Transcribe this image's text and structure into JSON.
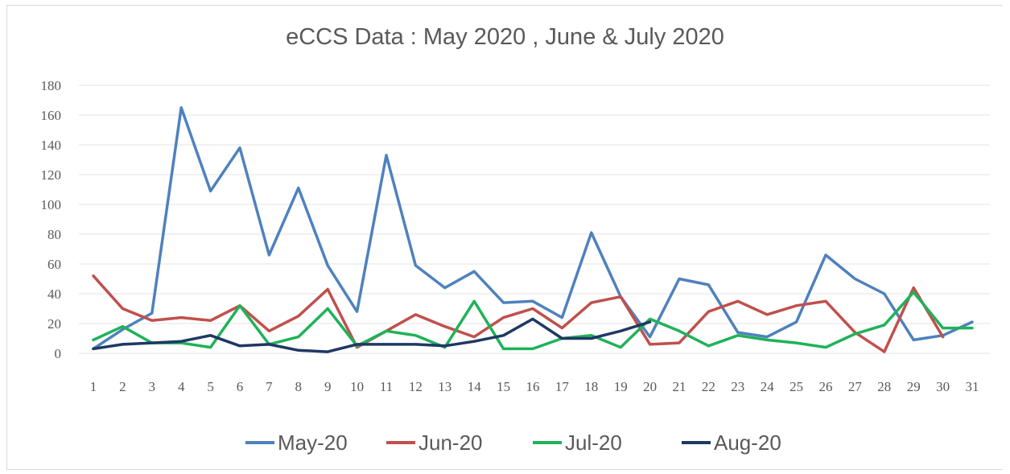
{
  "chart_data": {
    "type": "line",
    "title": "eCCS Data : May 2020 ,  June & July  2020",
    "xlabel": "",
    "ylabel": "",
    "x": [
      1,
      2,
      3,
      4,
      5,
      6,
      7,
      8,
      9,
      10,
      11,
      12,
      13,
      14,
      15,
      16,
      17,
      18,
      19,
      20,
      21,
      22,
      23,
      24,
      25,
      26,
      27,
      28,
      29,
      30,
      31
    ],
    "ylim": [
      0,
      180
    ],
    "yticks": [
      0,
      20,
      40,
      60,
      80,
      100,
      120,
      140,
      160,
      180
    ],
    "grid": true,
    "legend_position": "bottom",
    "series": [
      {
        "name": "May-20",
        "color": "#4f81bd",
        "values": [
          3,
          16,
          27,
          165,
          109,
          138,
          66,
          111,
          59,
          28,
          133,
          59,
          44,
          55,
          34,
          35,
          24,
          81,
          38,
          11,
          50,
          46,
          14,
          11,
          21,
          66,
          50,
          40,
          9,
          12,
          21
        ]
      },
      {
        "name": "Jun-20",
        "color": "#c0504d",
        "values": [
          52,
          30,
          22,
          24,
          22,
          32,
          15,
          25,
          43,
          4,
          15,
          26,
          18,
          11,
          24,
          30,
          17,
          34,
          38,
          6,
          7,
          28,
          35,
          26,
          32,
          35,
          14,
          1,
          44,
          11,
          null
        ]
      },
      {
        "name": "Jul-20",
        "color": "#1fb25a",
        "values": [
          9,
          18,
          7,
          7,
          4,
          32,
          6,
          11,
          30,
          5,
          15,
          12,
          4,
          35,
          3,
          3,
          10,
          12,
          4,
          23,
          15,
          5,
          12,
          9,
          7,
          4,
          13,
          19,
          41,
          17,
          17
        ]
      },
      {
        "name": "Aug-20",
        "color": "#1f3864",
        "values": [
          3,
          6,
          7,
          8,
          12,
          5,
          6,
          2,
          1,
          6,
          6,
          6,
          5,
          8,
          12,
          23,
          10,
          10,
          15,
          21,
          null,
          null,
          null,
          null,
          null,
          null,
          null,
          null,
          null,
          null,
          null
        ]
      }
    ]
  }
}
